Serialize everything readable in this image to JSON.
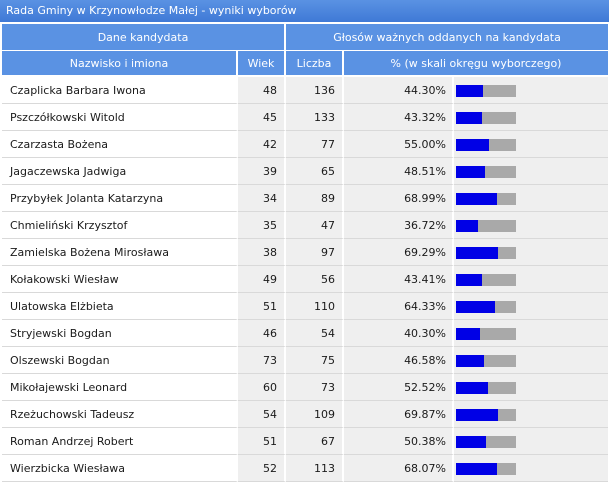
{
  "title": "Rada Gminy w Krzynowłodze Małej - wyniki wyborów",
  "headers": {
    "group_candidate": "Dane kandydata",
    "group_votes": "Głosów ważnych oddanych na kandydata",
    "name": "Nazwisko i imiona",
    "age": "Wiek",
    "count": "Liczba",
    "pct": "% (w skali okręgu wyborczego)"
  },
  "colors": {
    "header_bg": "#5a92e3",
    "bar_fill": "#0000e6",
    "bar_track": "#a9a9a9"
  },
  "rows": [
    {
      "name": "Czaplicka Barbara Iwona",
      "age": "48",
      "count": "136",
      "pct": "44.30%",
      "share": 0.443
    },
    {
      "name": "Pszczółkowski Witold",
      "age": "45",
      "count": "133",
      "pct": "43.32%",
      "share": 0.4332
    },
    {
      "name": "Czarzasta Bożena",
      "age": "42",
      "count": "77",
      "pct": "55.00%",
      "share": 0.55
    },
    {
      "name": "Jagaczewska Jadwiga",
      "age": "39",
      "count": "65",
      "pct": "48.51%",
      "share": 0.4851
    },
    {
      "name": "Przybyłek Jolanta Katarzyna",
      "age": "34",
      "count": "89",
      "pct": "68.99%",
      "share": 0.6899
    },
    {
      "name": "Chmieliński Krzysztof",
      "age": "35",
      "count": "47",
      "pct": "36.72%",
      "share": 0.3672
    },
    {
      "name": "Zamielska Bożena Mirosława",
      "age": "38",
      "count": "97",
      "pct": "69.29%",
      "share": 0.6929
    },
    {
      "name": "Kołakowski Wiesław",
      "age": "49",
      "count": "56",
      "pct": "43.41%",
      "share": 0.4341
    },
    {
      "name": "Ulatowska Elżbieta",
      "age": "51",
      "count": "110",
      "pct": "64.33%",
      "share": 0.6433
    },
    {
      "name": "Stryjewski Bogdan",
      "age": "46",
      "count": "54",
      "pct": "40.30%",
      "share": 0.403
    },
    {
      "name": "Olszewski Bogdan",
      "age": "73",
      "count": "75",
      "pct": "46.58%",
      "share": 0.4658
    },
    {
      "name": "Mikołajewski Leonard",
      "age": "60",
      "count": "73",
      "pct": "52.52%",
      "share": 0.5252
    },
    {
      "name": "Rzeżuchowski Tadeusz",
      "age": "54",
      "count": "109",
      "pct": "69.87%",
      "share": 0.6987
    },
    {
      "name": "Roman Andrzej Robert",
      "age": "51",
      "count": "67",
      "pct": "50.38%",
      "share": 0.5038
    },
    {
      "name": "Wierzbicka Wiesława",
      "age": "52",
      "count": "113",
      "pct": "68.07%",
      "share": 0.6807
    }
  ]
}
